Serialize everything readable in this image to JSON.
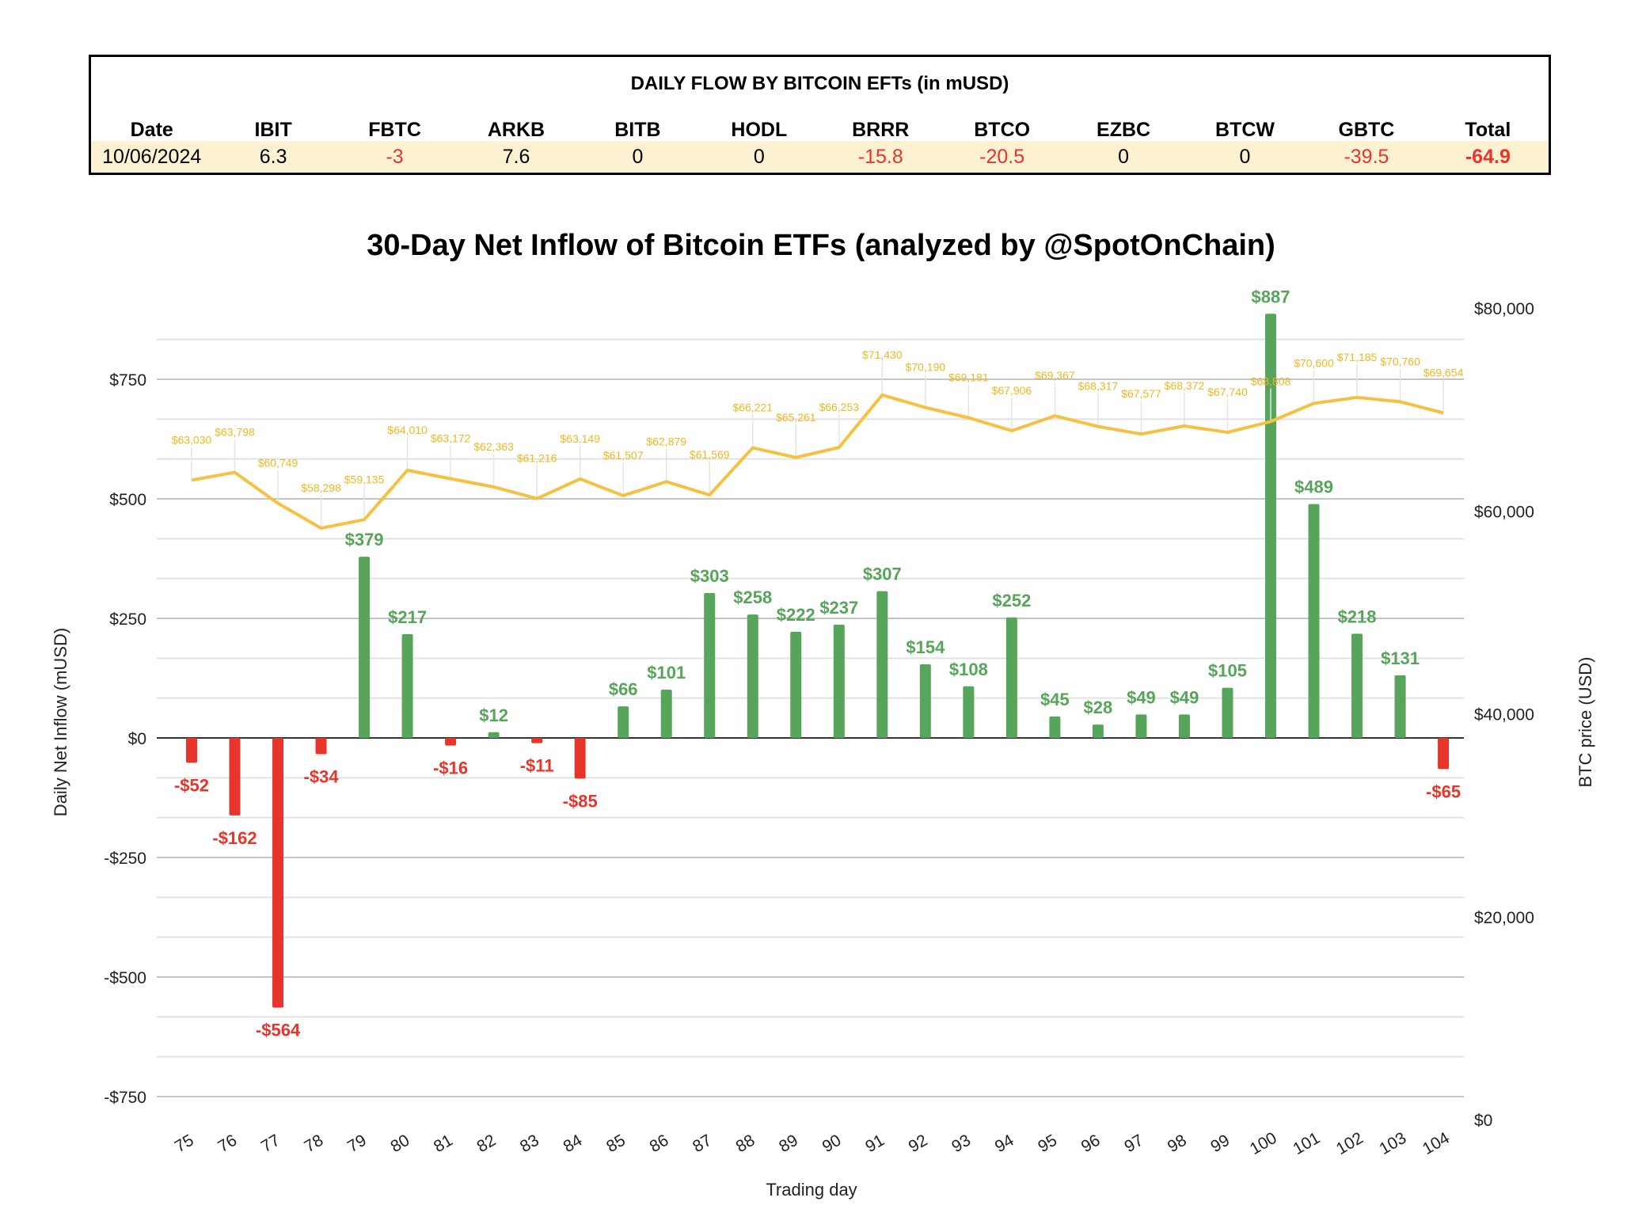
{
  "table": {
    "title": "DAILY FLOW BY BITCOIN EFTs (in mUSD)",
    "headers": [
      "Date",
      "IBIT",
      "FBTC",
      "ARKB",
      "BITB",
      "HODL",
      "BRRR",
      "BTCO",
      "EZBC",
      "BTCW",
      "GBTC",
      "Total"
    ],
    "row": [
      "10/06/2024",
      "6.3",
      "-3",
      "7.6",
      "0",
      "0",
      "-15.8",
      "-20.5",
      "0",
      "0",
      "-39.5",
      "-64.9"
    ]
  },
  "chart_data": {
    "type": "bar+line",
    "title": "30-Day Net Inflow of Bitcoin ETFs (analyzed by @SpotOnChain)",
    "xlabel": "Trading day",
    "ylabel": "Daily Net Inflow (mUSD)",
    "y2label": "BTC price (USD)",
    "ylim": [
      -750,
      833
    ],
    "y2lim": [
      0,
      80000
    ],
    "yticks": [
      "-$750",
      "-$500",
      "-$250",
      "$0",
      "$250",
      "$500",
      "$750"
    ],
    "yticks_values": [
      -750,
      -500,
      -250,
      0,
      250,
      500,
      750
    ],
    "y2ticks": [
      "$0",
      "$20,000",
      "$40,000",
      "$60,000",
      "$80,000"
    ],
    "y2ticks_values": [
      0,
      20000,
      40000,
      60000,
      80000
    ],
    "grid": true,
    "categories": [
      "75",
      "76",
      "77",
      "78",
      "79",
      "80",
      "81",
      "82",
      "83",
      "84",
      "85",
      "86",
      "87",
      "88",
      "89",
      "90",
      "91",
      "92",
      "93",
      "94",
      "95",
      "96",
      "97",
      "98",
      "99",
      "100",
      "101",
      "102",
      "103",
      "104"
    ],
    "series": [
      {
        "type": "bar",
        "axis": "left",
        "values": [
          -52,
          -162,
          -564,
          -34,
          379,
          217,
          -16,
          12,
          -11,
          -85,
          66,
          101,
          303,
          258,
          222,
          237,
          307,
          154,
          108,
          252,
          45,
          28,
          49,
          49,
          105,
          887,
          489,
          218,
          131,
          -65
        ],
        "labels": [
          "-$52",
          "-$162",
          "-$564",
          "-$34",
          "$379",
          "$217",
          "-$16",
          "$12",
          "-$11",
          "-$85",
          "$66",
          "$101",
          "$303",
          "$258",
          "$222",
          "$237",
          "$307",
          "$154",
          "$108",
          "$252",
          "$45",
          "$28",
          "$49",
          "$49",
          "$105",
          "$887",
          "$489",
          "$218",
          "$131",
          "-$65"
        ]
      },
      {
        "type": "line",
        "axis": "right",
        "values": [
          63030,
          63798,
          60749,
          58298,
          59135,
          64010,
          63172,
          62363,
          61216,
          63149,
          61507,
          62879,
          61569,
          66221,
          65261,
          66253,
          71430,
          70190,
          69181,
          67906,
          69367,
          68317,
          67577,
          68372,
          67740,
          68808,
          70600,
          71185,
          70760,
          69654
        ],
        "labels": [
          "$63,030",
          "$63,798",
          "$60,749",
          "$58,298",
          "$59,135",
          "$64,010",
          "$63,172",
          "$62,363",
          "$61,216",
          "$63,149",
          "$61,507",
          "$62,879",
          "$61,569",
          "$66,221",
          "$65,261",
          "$66,253",
          "$71,430",
          "$70,190",
          "$69,181",
          "$67,906",
          "$69,367",
          "$68,317",
          "$67,577",
          "$68,372",
          "$67,740",
          "$68,808",
          "$70,600",
          "$71,185",
          "$70,760",
          "$69,654"
        ]
      }
    ],
    "colors": {
      "positive": "#57a55a",
      "negative": "#e8352b",
      "price": "#f4c142"
    }
  }
}
